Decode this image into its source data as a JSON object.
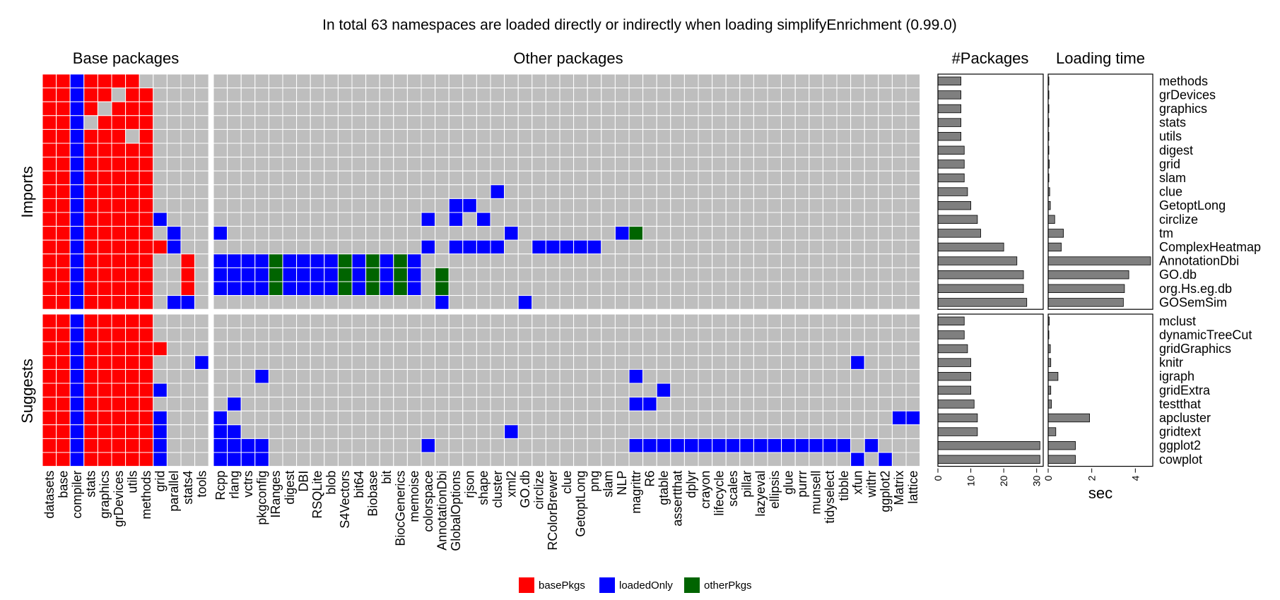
{
  "chart_data": {
    "type": "heatmap",
    "title": "In total 63 namespaces are loaded directly or indirectly when loading simplifyEnrichment (0.99.0)",
    "column_groups": [
      "Base packages",
      "Other packages"
    ],
    "row_groups": [
      "Imports",
      "Suggests"
    ],
    "columns": {
      "base": [
        "datasets",
        "base",
        "compiler",
        "stats",
        "graphics",
        "grDevices",
        "utils",
        "methods",
        "grid",
        "parallel",
        "stats4",
        "tools"
      ],
      "other": [
        "Rcpp",
        "rlang",
        "vctrs",
        "pkgconfig",
        "IRanges",
        "digest",
        "DBI",
        "RSQLite",
        "blob",
        "S4Vectors",
        "bit64",
        "Biobase",
        "bit",
        "BiocGenerics",
        "memoise",
        "colorspace",
        "AnnotationDbi",
        "GlobalOptions",
        "rjson",
        "shape",
        "cluster",
        "xml2",
        "GO.db",
        "circlize",
        "RColorBrewer",
        "clue",
        "GetoptLong",
        "png",
        "slam",
        "NLP",
        "magrittr",
        "R6",
        "gtable",
        "assertthat",
        "dplyr",
        "crayon",
        "lifecycle",
        "scales",
        "pillar",
        "lazyeval",
        "ellipsis",
        "glue",
        "purrr",
        "munsell",
        "tidyselect",
        "tibble",
        "xfun",
        "withr",
        "ggplot2",
        "Matrix",
        "lattice"
      ]
    },
    "rows": {
      "imports": [
        "methods",
        "grDevices",
        "graphics",
        "stats",
        "utils",
        "digest",
        "grid",
        "slam",
        "clue",
        "GetoptLong",
        "circlize",
        "tm",
        "ComplexHeatmap",
        "AnnotationDbi",
        "GO.db",
        "org.Hs.eg.db",
        "GOSemSim"
      ],
      "suggests": [
        "mclust",
        "dynamicTreeCut",
        "gridGraphics",
        "knitr",
        "igraph",
        "gridExtra",
        "testthat",
        "apcluster",
        "gridtext",
        "ggplot2",
        "cowplot"
      ]
    },
    "legend": [
      {
        "name": "basePkgs",
        "color": "#ff0000"
      },
      {
        "name": "loadedOnly",
        "color": "#0000ff"
      },
      {
        "name": "otherPkgs",
        "color": "#006400"
      }
    ],
    "empty_color": "#bebebe",
    "base_matrix": {
      "imports": [
        "BBLBBBB.....",
        "BBLBB.BB....",
        "BBLB.BBB....",
        "BBL.BBBB....",
        "BBLBBB.B....",
        "BBLBBBBB....",
        "BBLBBBBB....",
        "BBLBBBBB....",
        "BBLBBBBB....",
        "BBLBBBBB....",
        "BBLBBBBBL...",
        "BBLBBBBB.L..",
        "BBLBBBBBBL..",
        "BBLBBBBB..B.",
        "BBLBBBBB..B.",
        "BBLBBBBB..B.",
        "BBLBBBBB.LL."
      ],
      "suggests": [
        "BBLBBBBB....",
        "BBLBBBBB....",
        "BBLBBBBBB...",
        "BBLBBBBB...L",
        "BBLBBBBB....",
        "BBLBBBBBL...",
        "BBLBBBBB....",
        "BBLBBBBBL...",
        "BBLBBBBBL...",
        "BBLBBBBBL...",
        "BBLBBBBBL..."
      ]
    },
    "other_matrix": {
      "imports": [
        "...................................................",
        "...................................................",
        "...................................................",
        "...................................................",
        "...................................................",
        "...................................................",
        "...................................................",
        "...................................................",
        "....................L..............................",
        ".................LL................................",
        "...............L.L.L...............................",
        "L....................L.......LO.....................",
        "...............L.LLLL..LLLLL.......................",
        "LLLLOLLLLOLOLOL....................................",
        "LLLLOLLLLOLOLOL.O..................................",
        "LLLLOLLLLOLOLOL.O..................................",
        "................L.....L............................"
      ],
      "suggests": [
        "...................................................",
        "...................................................",
        "...................................................",
        "..............................................L....",
        "...L..........................L...................",
        "................................L..................",
        ".L............................LL...................",
        "L................................................LL",
        "LL...................L.............................",
        "LLLL...........L..............LLLLLLLLLLLLLLLL.L...",
        "LLLL..........................................L.L.."
      ]
    },
    "bar_panels": [
      {
        "title": "#Packages",
        "xlabel": "",
        "ticks": [
          0,
          10,
          20,
          30
        ],
        "xlim": [
          0,
          32
        ]
      },
      {
        "title": "Loading time",
        "xlabel": "sec",
        "ticks": [
          0,
          2,
          4
        ],
        "xlim": [
          0,
          4.8
        ]
      }
    ],
    "bars": {
      "imports": [
        {
          "pkg": "methods",
          "count": 7,
          "time": 0.01
        },
        {
          "pkg": "grDevices",
          "count": 7,
          "time": 0.01
        },
        {
          "pkg": "graphics",
          "count": 7,
          "time": 0.01
        },
        {
          "pkg": "stats",
          "count": 7,
          "time": 0.01
        },
        {
          "pkg": "utils",
          "count": 7,
          "time": 0.01
        },
        {
          "pkg": "digest",
          "count": 8,
          "time": 0.03
        },
        {
          "pkg": "grid",
          "count": 8,
          "time": 0.05
        },
        {
          "pkg": "slam",
          "count": 8,
          "time": 0.03
        },
        {
          "pkg": "clue",
          "count": 9,
          "time": 0.07
        },
        {
          "pkg": "GetoptLong",
          "count": 10,
          "time": 0.1
        },
        {
          "pkg": "circlize",
          "count": 12,
          "time": 0.3
        },
        {
          "pkg": "tm",
          "count": 13,
          "time": 0.7
        },
        {
          "pkg": "ComplexHeatmap",
          "count": 20,
          "time": 0.6
        },
        {
          "pkg": "AnnotationDbi",
          "count": 24,
          "time": 4.7
        },
        {
          "pkg": "GO.db",
          "count": 26,
          "time": 3.7
        },
        {
          "pkg": "org.Hs.eg.db",
          "count": 26,
          "time": 3.5
        },
        {
          "pkg": "GOSemSim",
          "count": 27,
          "time": 3.45
        }
      ],
      "suggests": [
        {
          "pkg": "mclust",
          "count": 8,
          "time": 0.05
        },
        {
          "pkg": "dynamicTreeCut",
          "count": 8,
          "time": 0.02
        },
        {
          "pkg": "gridGraphics",
          "count": 9,
          "time": 0.1
        },
        {
          "pkg": "knitr",
          "count": 10,
          "time": 0.12
        },
        {
          "pkg": "igraph",
          "count": 10,
          "time": 0.45
        },
        {
          "pkg": "gridExtra",
          "count": 10,
          "time": 0.12
        },
        {
          "pkg": "testthat",
          "count": 11,
          "time": 0.15
        },
        {
          "pkg": "apcluster",
          "count": 12,
          "time": 1.9
        },
        {
          "pkg": "gridtext",
          "count": 12,
          "time": 0.35
        },
        {
          "pkg": "ggplot2",
          "count": 31,
          "time": 1.25
        },
        {
          "pkg": "cowplot",
          "count": 31,
          "time": 1.25
        }
      ]
    }
  }
}
